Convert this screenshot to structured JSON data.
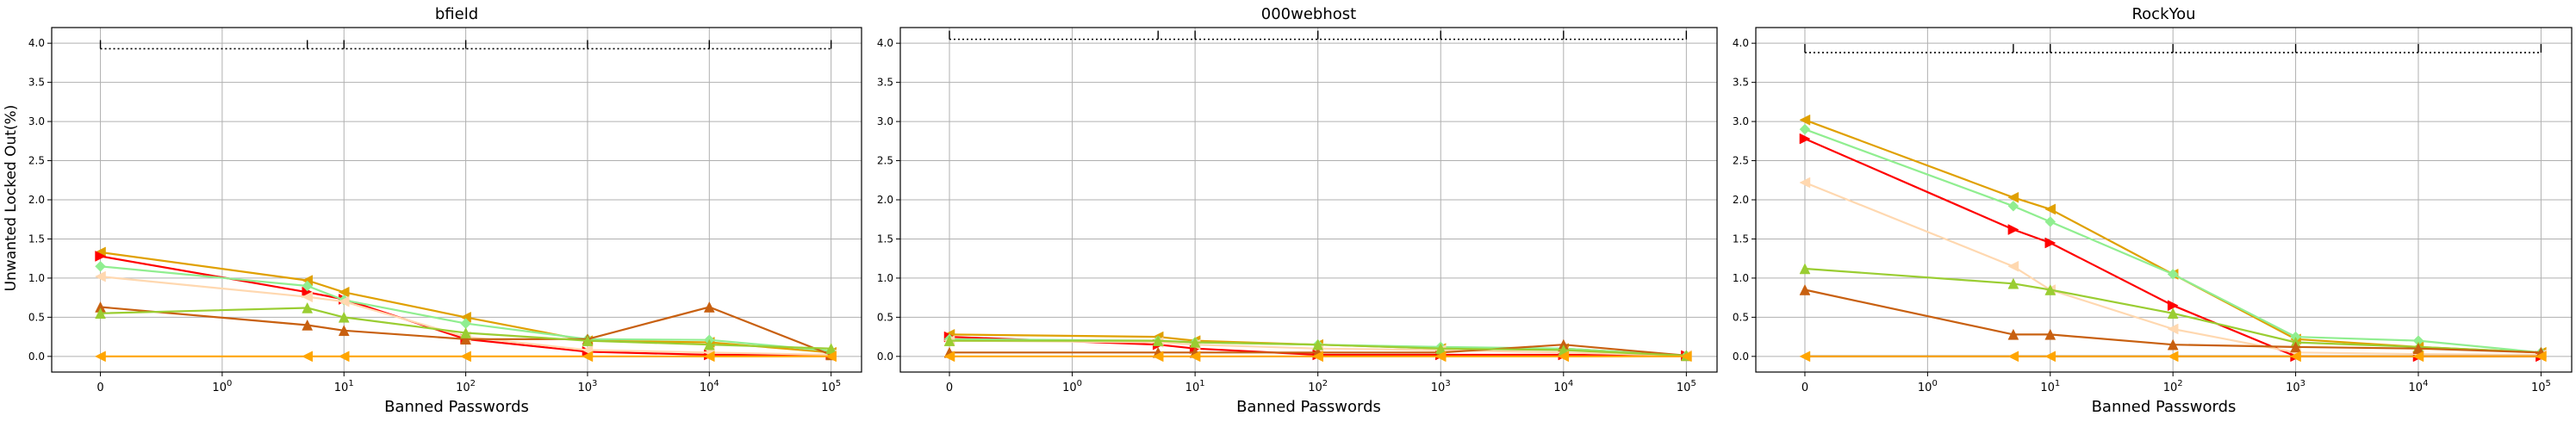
{
  "figure": {
    "ylabel": "Unwanted Locked Out(%)",
    "xlabel": "Banned Passwords"
  },
  "chart_data": [
    {
      "type": "line",
      "title": "bfield",
      "xlabel": "Banned Passwords",
      "ylabel": "Unwanted Locked Out(%)",
      "xscale": "symlog",
      "ylim": [
        -0.2,
        4.2
      ],
      "xticks": [
        "0",
        "10^0",
        "10^1",
        "10^2",
        "10^3",
        "10^4",
        "10^5"
      ],
      "yticks": [
        "0.0",
        "0.5",
        "1.0",
        "1.5",
        "2.0",
        "2.5",
        "3.0",
        "3.5",
        "4.0"
      ],
      "grid": true,
      "ref_level": 3.93,
      "x": [
        0,
        5,
        10,
        100,
        1000,
        10000,
        100000
      ],
      "series": [
        {
          "color": "#e0a000",
          "marker": "tri-left",
          "values": [
            1.33,
            0.97,
            0.82,
            0.5,
            0.2,
            0.18,
            0.05
          ]
        },
        {
          "color": "#ff0000",
          "marker": "tri-right",
          "values": [
            1.28,
            0.82,
            0.73,
            0.22,
            0.06,
            0.02,
            0.02
          ]
        },
        {
          "color": "#90ee90",
          "marker": "diamond",
          "values": [
            1.15,
            0.9,
            0.72,
            0.42,
            0.22,
            0.21,
            0.07
          ]
        },
        {
          "color": "#ffd8b0",
          "marker": "tri-left",
          "values": [
            1.02,
            0.76,
            0.7,
            0.25,
            0.08,
            0.05,
            0.02
          ]
        },
        {
          "color": "#c86010",
          "marker": "tri-up",
          "values": [
            0.63,
            0.4,
            0.33,
            0.22,
            0.22,
            0.63,
            0.02
          ]
        },
        {
          "color": "#9acd32",
          "marker": "tri-up",
          "values": [
            0.55,
            0.62,
            0.5,
            0.3,
            0.2,
            0.15,
            0.1
          ]
        },
        {
          "color": "#ffa500",
          "marker": "tri-left",
          "values": [
            0.0,
            0.0,
            0.0,
            0.0,
            0.0,
            0.0,
            0.0
          ]
        }
      ]
    },
    {
      "type": "line",
      "title": "000webhost",
      "xlabel": "Banned Passwords",
      "xscale": "symlog",
      "ylim": [
        -0.2,
        4.2
      ],
      "xticks": [
        "0",
        "10^0",
        "10^1",
        "10^2",
        "10^3",
        "10^4",
        "10^5"
      ],
      "yticks": [
        "0.0",
        "0.5",
        "1.0",
        "1.5",
        "2.0",
        "2.5",
        "3.0",
        "3.5",
        "4.0"
      ],
      "grid": true,
      "ref_level": 4.05,
      "x": [
        0,
        5,
        10,
        100,
        1000,
        10000,
        100000
      ],
      "series": [
        {
          "color": "#e0a000",
          "marker": "tri-left",
          "values": [
            0.28,
            0.25,
            0.2,
            0.15,
            0.1,
            0.1,
            0.01
          ]
        },
        {
          "color": "#ff0000",
          "marker": "tri-right",
          "values": [
            0.25,
            0.15,
            0.1,
            0.02,
            0.02,
            0.02,
            0.01
          ]
        },
        {
          "color": "#90ee90",
          "marker": "diamond",
          "values": [
            0.22,
            0.2,
            0.18,
            0.15,
            0.12,
            0.1,
            0.01
          ]
        },
        {
          "color": "#ffd8b0",
          "marker": "tri-left",
          "values": [
            0.2,
            0.18,
            0.15,
            0.1,
            0.08,
            0.05,
            0.01
          ]
        },
        {
          "color": "#c86010",
          "marker": "tri-up",
          "values": [
            0.05,
            0.05,
            0.05,
            0.05,
            0.05,
            0.15,
            0.01
          ]
        },
        {
          "color": "#9acd32",
          "marker": "tri-up",
          "values": [
            0.2,
            0.2,
            0.18,
            0.15,
            0.1,
            0.08,
            0.01
          ]
        },
        {
          "color": "#ffa500",
          "marker": "tri-left",
          "values": [
            0.0,
            0.0,
            0.0,
            0.0,
            0.0,
            0.0,
            0.0
          ]
        }
      ]
    },
    {
      "type": "line",
      "title": "RockYou",
      "xlabel": "Banned Passwords",
      "xscale": "symlog",
      "ylim": [
        -0.2,
        4.2
      ],
      "xticks": [
        "0",
        "10^0",
        "10^1",
        "10^2",
        "10^3",
        "10^4",
        "10^5"
      ],
      "yticks": [
        "0.0",
        "0.5",
        "1.0",
        "1.5",
        "2.0",
        "2.5",
        "3.0",
        "3.5",
        "4.0"
      ],
      "grid": true,
      "ref_level": 3.88,
      "x": [
        0,
        5,
        10,
        100,
        1000,
        10000,
        100000
      ],
      "series": [
        {
          "color": "#e0a000",
          "marker": "tri-left",
          "values": [
            3.02,
            2.03,
            1.88,
            1.05,
            0.22,
            0.12,
            0.05
          ]
        },
        {
          "color": "#90ee90",
          "marker": "diamond",
          "values": [
            2.9,
            1.92,
            1.72,
            1.05,
            0.25,
            0.2,
            0.05
          ]
        },
        {
          "color": "#ff0000",
          "marker": "tri-right",
          "values": [
            2.78,
            1.62,
            1.45,
            0.65,
            0.0,
            0.0,
            0.0
          ]
        },
        {
          "color": "#ffd8b0",
          "marker": "tri-left",
          "values": [
            2.22,
            1.15,
            0.85,
            0.35,
            0.05,
            0.03,
            0.02
          ]
        },
        {
          "color": "#9acd32",
          "marker": "tri-up",
          "values": [
            1.12,
            0.93,
            0.85,
            0.55,
            0.18,
            0.12,
            0.05
          ]
        },
        {
          "color": "#c86010",
          "marker": "tri-up",
          "values": [
            0.85,
            0.28,
            0.28,
            0.15,
            0.12,
            0.1,
            0.05
          ]
        },
        {
          "color": "#000000",
          "marker": "none",
          "values": [
            0.0,
            0.0,
            0.0,
            0.0,
            0.0,
            0.0,
            0.0
          ]
        },
        {
          "color": "#ffa500",
          "marker": "tri-left",
          "values": [
            0.0,
            0.0,
            0.0,
            0.0,
            0.0,
            0.0,
            0.0
          ]
        }
      ]
    }
  ]
}
